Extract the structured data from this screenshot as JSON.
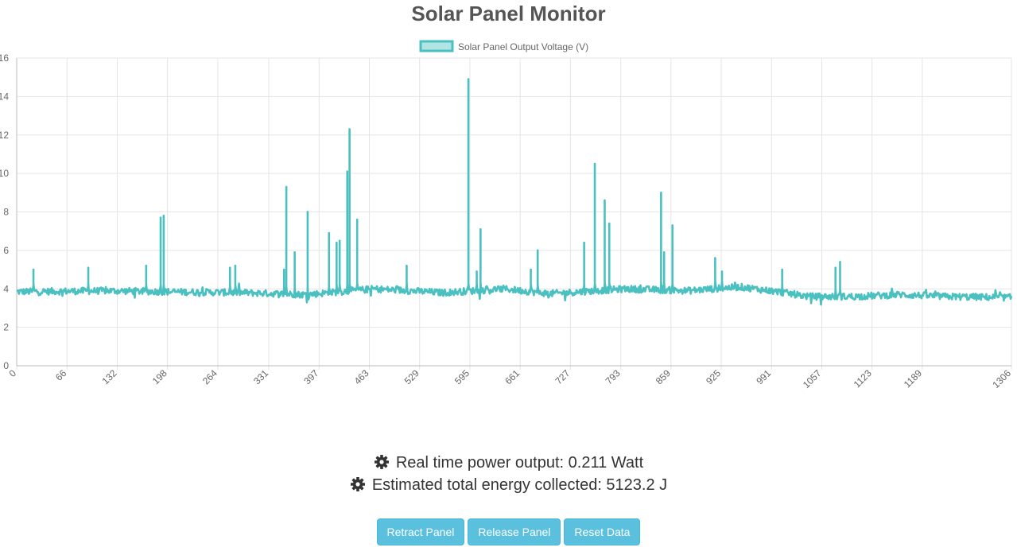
{
  "page": {
    "title": "Solar Panel Monitor"
  },
  "info": {
    "power_text": "Real time power output: 0.211 Watt",
    "energy_text": "Estimated total energy collected: 5123.2 J",
    "icon": "gear-icon"
  },
  "buttons": {
    "retract": "Retract Panel",
    "release": "Release Panel",
    "reset": "Reset Data"
  },
  "colors": {
    "series_line": "#4bc0c0",
    "series_fill": "#b3e4e4",
    "button_bg": "#5bc0de",
    "grid": "#e5e5e5"
  },
  "chart_data": {
    "type": "line",
    "title": "",
    "xlabel": "",
    "ylabel": "",
    "ylim": [
      0,
      16
    ],
    "xlim": [
      0,
      1306
    ],
    "grid": true,
    "legend_position": "top-center",
    "y_ticks": [
      "0",
      "2",
      "4",
      "6",
      "8",
      "10",
      "12",
      "14",
      "16"
    ],
    "x_ticks": [
      "0",
      "66",
      "132",
      "198",
      "264",
      "331",
      "397",
      "463",
      "529",
      "595",
      "661",
      "727",
      "793",
      "859",
      "925",
      "991",
      "1057",
      "1123",
      "1189",
      "1306"
    ],
    "series": [
      {
        "name": "Solar Panel Output Voltage (V)",
        "baseline": [
          [
            0,
            3.85
          ],
          [
            120,
            3.9
          ],
          [
            200,
            3.85
          ],
          [
            300,
            3.8
          ],
          [
            380,
            3.7
          ],
          [
            470,
            4.0
          ],
          [
            560,
            3.8
          ],
          [
            640,
            4.0
          ],
          [
            700,
            3.75
          ],
          [
            800,
            4.0
          ],
          [
            880,
            3.9
          ],
          [
            950,
            4.1
          ],
          [
            1000,
            3.85
          ],
          [
            1040,
            3.6
          ],
          [
            1100,
            3.6
          ],
          [
            1160,
            3.7
          ],
          [
            1220,
            3.6
          ],
          [
            1306,
            3.55
          ]
        ],
        "peaks": [
          [
            22,
            5.0
          ],
          [
            94,
            5.1
          ],
          [
            170,
            5.2
          ],
          [
            189,
            7.7
          ],
          [
            193,
            7.8
          ],
          [
            280,
            5.1
          ],
          [
            287,
            5.2
          ],
          [
            351,
            5.0
          ],
          [
            354,
            9.3
          ],
          [
            365,
            5.9
          ],
          [
            382,
            8.0
          ],
          [
            410,
            6.9
          ],
          [
            420,
            6.4
          ],
          [
            424,
            6.5
          ],
          [
            434,
            10.1
          ],
          [
            437,
            12.3
          ],
          [
            447,
            7.6
          ],
          [
            512,
            5.2
          ],
          [
            593,
            14.9
          ],
          [
            604,
            4.9
          ],
          [
            609,
            7.1
          ],
          [
            675,
            5.0
          ],
          [
            684,
            6.0
          ],
          [
            745,
            6.4
          ],
          [
            759,
            10.5
          ],
          [
            772,
            8.6
          ],
          [
            778,
            7.4
          ],
          [
            846,
            9.0
          ],
          [
            850,
            5.9
          ],
          [
            861,
            7.3
          ],
          [
            917,
            5.6
          ],
          [
            926,
            4.9
          ],
          [
            1005,
            5.0
          ],
          [
            1075,
            5.1
          ],
          [
            1081,
            5.4
          ]
        ]
      }
    ]
  }
}
